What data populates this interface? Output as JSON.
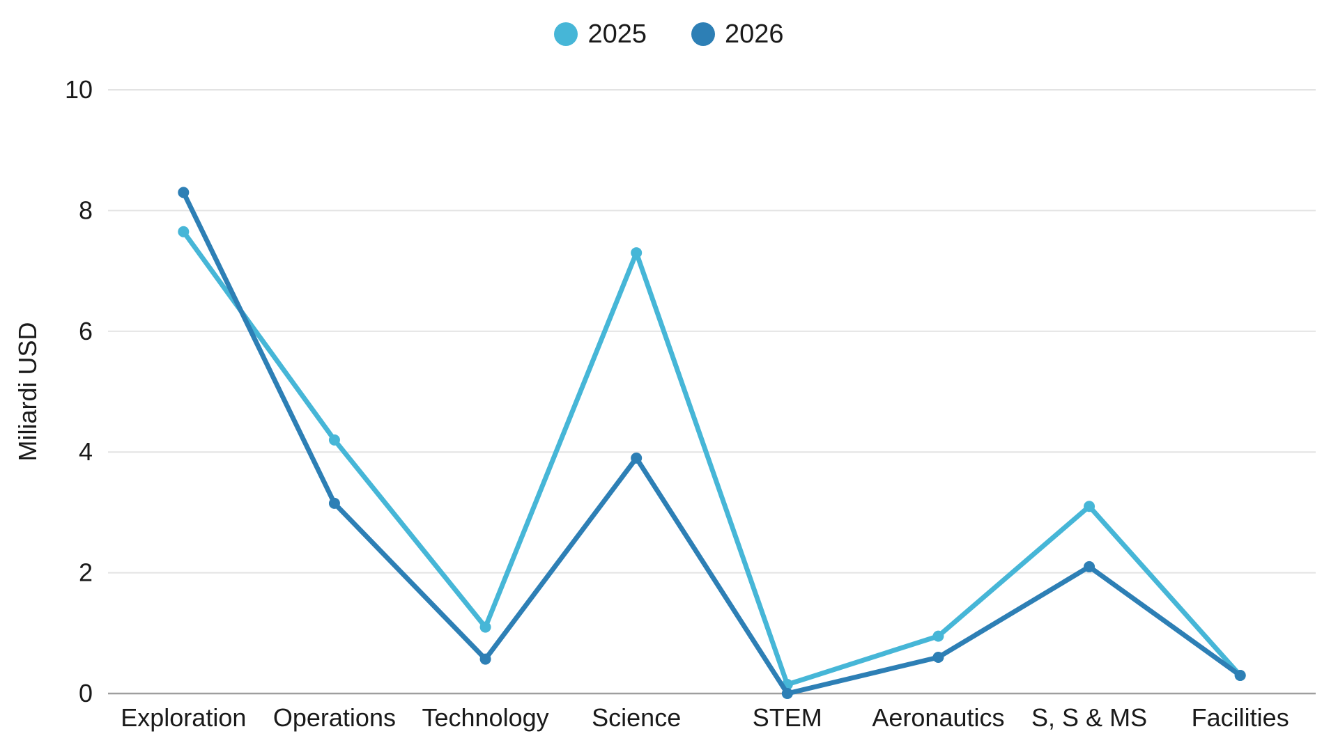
{
  "chart": {
    "background": "#ffffff",
    "text_color": "#1a1a1a",
    "grid_color": "#e3e3e3",
    "axis_line_color": "#9e9e9e"
  },
  "chart_data": {
    "type": "line",
    "title": "",
    "xlabel": "",
    "ylabel": "Miliardi USD",
    "categories": [
      "Exploration",
      "Operations",
      "Technology",
      "Science",
      "STEM",
      "Aeronautics",
      "S, S & MS",
      "Facilities"
    ],
    "series": [
      {
        "name": "2025",
        "color": "#46b6d7",
        "values": [
          7.65,
          4.2,
          1.1,
          7.3,
          0.15,
          0.95,
          3.1,
          0.3
        ]
      },
      {
        "name": "2026",
        "color": "#2d7fb5",
        "values": [
          8.3,
          3.15,
          0.57,
          3.9,
          0,
          0.6,
          2.1,
          0.3
        ]
      }
    ],
    "ylim": [
      0,
      10
    ],
    "yticks": [
      0,
      2,
      4,
      6,
      8,
      10
    ],
    "grid": "horizontal",
    "legend_position": "top",
    "markers": true
  }
}
